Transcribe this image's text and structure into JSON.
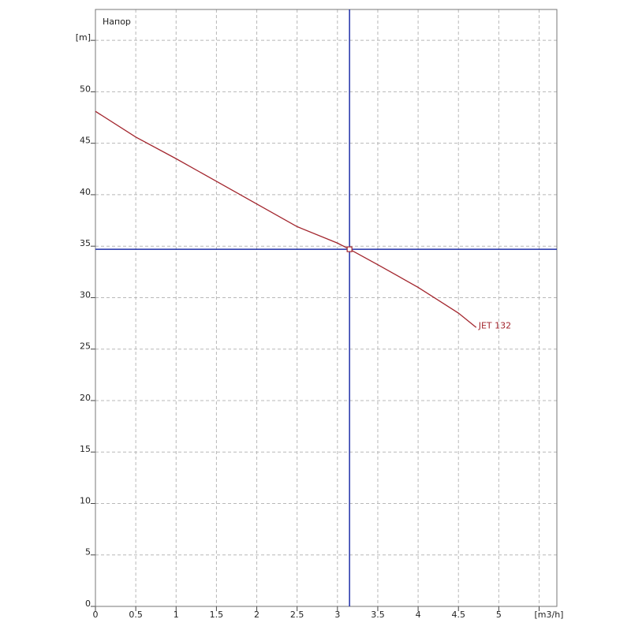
{
  "chart_data": {
    "type": "line",
    "title": "Напор",
    "xlim": [
      0,
      5.72
    ],
    "ylim": [
      0,
      58
    ],
    "xticks": [
      0,
      0.5,
      1,
      1.5,
      2,
      2.5,
      3,
      3.5,
      4,
      4.5,
      5,
      {
        "value": 5.5,
        "label": "[m3/h]"
      }
    ],
    "yticks": [
      0,
      5,
      10,
      15,
      20,
      25,
      30,
      35,
      40,
      45,
      50,
      {
        "value": 55,
        "label": "[m]"
      }
    ],
    "grid": true,
    "series": [
      {
        "name": "JET 132",
        "color": "#a3262e",
        "x": [
          0,
          0.5,
          1,
          1.5,
          2,
          2.5,
          3,
          3.15,
          3.5,
          4,
          4.5,
          4.72
        ],
        "values": [
          48.1,
          45.6,
          43.5,
          41.3,
          39.1,
          36.9,
          35.3,
          34.7,
          33.2,
          31,
          28.5,
          27.1
        ]
      }
    ],
    "operating_point": {
      "x": 3.15,
      "y": 34.7,
      "color": "#1f2fa8"
    }
  }
}
